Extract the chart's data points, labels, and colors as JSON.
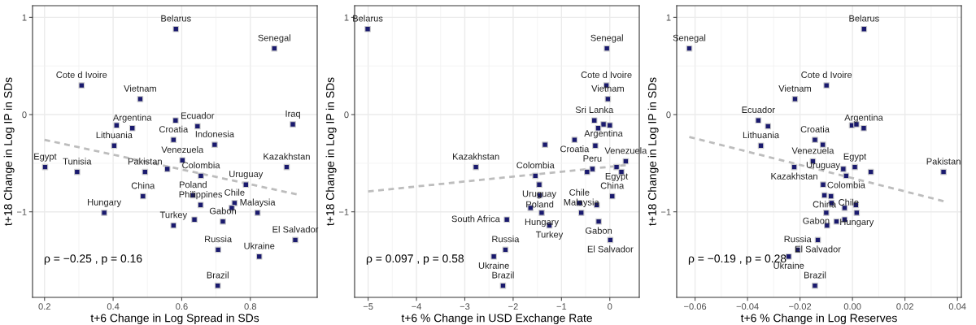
{
  "chart_data": [
    {
      "type": "scatter",
      "xlabel": "t+6 Change in Log Spread in SDs",
      "ylabel": "t+18 Change in Log IP in SDs",
      "marker": "square",
      "grid": true,
      "xlim": [
        0.165,
        0.995
      ],
      "ylim": [
        -1.88,
        1.12
      ],
      "xticks": [
        0.2,
        0.4,
        0.6,
        0.8
      ],
      "yticks": [
        -1,
        0,
        1
      ],
      "series": [
        {
          "color": "#1a1a6e",
          "x": [
            0.583,
            0.87,
            0.308,
            0.479,
            0.41,
            0.456,
            0.582,
            0.646,
            0.924,
            0.576,
            0.403,
            0.696,
            0.602,
            0.2016,
            0.295,
            0.493,
            0.558,
            0.656,
            0.906,
            0.787,
            0.487,
            0.633,
            0.655,
            0.754,
            0.746,
            0.821,
            0.374,
            0.576,
            0.637,
            0.72,
            0.931,
            0.706,
            0.826,
            0.705
          ],
          "values": [
            0.88,
            0.68,
            0.3,
            0.16,
            -0.11,
            -0.14,
            -0.06,
            -0.12,
            -0.1,
            -0.26,
            -0.32,
            -0.31,
            -0.47,
            -0.54,
            -0.59,
            -0.59,
            -0.56,
            -0.63,
            -0.54,
            -0.72,
            -0.84,
            -0.83,
            -0.93,
            -0.91,
            -0.96,
            -1.01,
            -1.01,
            -1.14,
            -1.08,
            -1.1,
            -1.29,
            -1.39,
            -1.46,
            -1.76
          ]
        },
        {
          "type": "line",
          "line_style": "dashed",
          "marker": "none",
          "color": "#bdbdbd",
          "x": [
            0.2,
            0.935
          ],
          "values": [
            -0.26,
            -0.82
          ]
        }
      ],
      "annotations": [
        {
          "text": "Belarus",
          "x": 0.583,
          "y": 0.88
        },
        {
          "text": "Senegal",
          "x": 0.87,
          "y": 0.68
        },
        {
          "text": "Cote d Ivoire",
          "x": 0.308,
          "y": 0.3
        },
        {
          "text": "Vietnam",
          "x": 0.479,
          "y": 0.16
        },
        {
          "text": "Argentina",
          "x": 0.456,
          "y": -0.14
        },
        {
          "text": "Ecuador",
          "x": 0.646,
          "y": -0.12
        },
        {
          "text": "Iraq",
          "x": 0.924,
          "y": -0.1
        },
        {
          "text": "Croatia",
          "x": 0.576,
          "y": -0.26
        },
        {
          "text": "Lithuania",
          "x": 0.403,
          "y": -0.32
        },
        {
          "text": "Indonesia",
          "x": 0.696,
          "y": -0.31
        },
        {
          "text": "Venezuela",
          "x": 0.602,
          "y": -0.47
        },
        {
          "text": "Egypt",
          "x": 0.2016,
          "y": -0.54
        },
        {
          "text": "Tunisia",
          "x": 0.295,
          "y": -0.59
        },
        {
          "text": "Pakistan",
          "x": 0.493,
          "y": -0.59
        },
        {
          "text": "Colombia",
          "x": 0.656,
          "y": -0.63
        },
        {
          "text": "Kazakhstan",
          "x": 0.906,
          "y": -0.54
        },
        {
          "text": "Uruguay",
          "x": 0.787,
          "y": -0.72
        },
        {
          "text": "China",
          "x": 0.487,
          "y": -0.84
        },
        {
          "text": "Poland",
          "x": 0.633,
          "y": -0.83
        },
        {
          "text": "Philippines",
          "x": 0.655,
          "y": -0.93
        },
        {
          "text": "Chile",
          "x": 0.754,
          "y": -0.91
        },
        {
          "text": "Malaysia",
          "x": 0.821,
          "y": -1.01
        },
        {
          "text": "Hungary",
          "x": 0.374,
          "y": -1.01
        },
        {
          "text": "Turkey",
          "x": 0.576,
          "y": -1.14
        },
        {
          "text": "Gabon",
          "x": 0.72,
          "y": -1.1
        },
        {
          "text": "El Salvador",
          "x": 0.931,
          "y": -1.29
        },
        {
          "text": "Russia",
          "x": 0.706,
          "y": -1.39
        },
        {
          "text": "Ukraine",
          "x": 0.826,
          "y": -1.46
        },
        {
          "text": "Brazil",
          "x": 0.705,
          "y": -1.76
        },
        "ρ = −0.25 , p = 0.16"
      ]
    },
    {
      "type": "scatter",
      "xlabel": "t+6 % Change in USD Exchange Rate",
      "ylabel": "t+18 Change in Log IP in SDs",
      "marker": "square",
      "grid": true,
      "xlim": [
        -5.28,
        0.61
      ],
      "ylim": [
        -1.88,
        1.12
      ],
      "xticks": [
        {
          "value": -5,
          "label": "−5"
        },
        {
          "value": -4,
          "label": "−4"
        },
        {
          "value": -3,
          "label": "−3"
        },
        {
          "value": -2,
          "label": "−2"
        },
        {
          "value": -1,
          "label": "−1"
        },
        0
      ],
      "yticks": [
        -1,
        0,
        1
      ],
      "series": [
        {
          "color": "#1a1a6e",
          "x": [
            -5.01,
            -0.06,
            -0.07,
            -0.04,
            -0.32,
            -0.13,
            0.0,
            -0.24,
            -0.73,
            -1.34,
            -0.3,
            0.33,
            0.14,
            0.24,
            -0.36,
            -0.47,
            -2.77,
            -1.54,
            -1.46,
            -1.45,
            0.05,
            -0.63,
            -0.27,
            -0.59,
            -1.41,
            -1.64,
            -2.13,
            -1.25,
            -0.23,
            0.01,
            -2.16,
            -2.4,
            -2.21
          ],
          "values": [
            0.88,
            0.68,
            0.3,
            0.16,
            -0.06,
            -0.1,
            -0.11,
            -0.14,
            -0.26,
            -0.31,
            -0.32,
            -0.48,
            -0.54,
            -0.59,
            -0.56,
            -0.59,
            -0.54,
            -0.63,
            -0.72,
            -0.83,
            -0.84,
            -0.91,
            -0.93,
            -1.01,
            -1.01,
            -0.96,
            -1.08,
            -1.14,
            -1.1,
            -1.29,
            -1.39,
            -1.46,
            -1.76
          ]
        },
        {
          "type": "line",
          "line_style": "dashed",
          "marker": "none",
          "color": "#bdbdbd",
          "x": [
            -5.0,
            0.33
          ],
          "values": [
            -0.79,
            -0.52
          ]
        }
      ],
      "annotations": [
        {
          "text": "Belarus",
          "x": -5.01,
          "y": 0.88
        },
        {
          "text": "Senegal",
          "x": -0.06,
          "y": 0.68
        },
        {
          "text": "Cote d Ivoire",
          "x": -0.07,
          "y": 0.3
        },
        {
          "text": "Vietnam",
          "x": -0.04,
          "y": 0.16
        },
        {
          "text": "Sri Lanka",
          "x": -0.32,
          "y": -0.06
        },
        {
          "text": "Argentina",
          "x": -0.13,
          "y": -0.1
        },
        {
          "text": "Croatia",
          "x": -0.73,
          "y": -0.26
        },
        {
          "text": "Venezuela",
          "x": 0.33,
          "y": -0.48
        },
        {
          "text": "Egypt",
          "x": 0.14,
          "y": -0.54
        },
        {
          "text": "Peru",
          "x": -0.36,
          "y": -0.56
        },
        {
          "text": "Kazakhstan",
          "x": -2.77,
          "y": -0.54
        },
        {
          "text": "Colombia",
          "x": -1.54,
          "y": -0.63
        },
        {
          "text": "Uruguay",
          "x": -1.46,
          "y": -0.72
        },
        {
          "text": "Poland",
          "x": -1.45,
          "y": -0.83
        },
        {
          "text": "China",
          "x": 0.05,
          "y": -0.84
        },
        {
          "text": "Chile",
          "x": -0.63,
          "y": -0.91
        },
        {
          "text": "Malaysia",
          "x": -0.59,
          "y": -1.01
        },
        {
          "text": "Hungary",
          "x": -1.41,
          "y": -1.01
        },
        {
          "text": "South Africa",
          "x": -2.13,
          "y": -1.08
        },
        {
          "text": "Turkey",
          "x": -1.25,
          "y": -1.14
        },
        {
          "text": "Gabon",
          "x": -0.23,
          "y": -1.1
        },
        {
          "text": "El Salvador",
          "x": 0.01,
          "y": -1.29
        },
        {
          "text": "Russia",
          "x": -2.16,
          "y": -1.39
        },
        {
          "text": "Ukraine",
          "x": -2.4,
          "y": -1.46
        },
        {
          "text": "Brazil",
          "x": -2.21,
          "y": -1.76
        },
        "ρ = 0.097 , p = 0.58"
      ]
    },
    {
      "type": "scatter",
      "xlabel": "t+6 % Change in Log Reserves",
      "ylabel": "t+18 Change in Log IP in SDs",
      "marker": "square",
      "grid": true,
      "xlim": [
        -0.067,
        0.0415
      ],
      "ylim": [
        -1.88,
        1.12
      ],
      "xticks": [
        {
          "value": -0.06,
          "label": "−0.06"
        },
        {
          "value": -0.04,
          "label": "−0.04"
        },
        {
          "value": -0.02,
          "label": "−0.02"
        },
        {
          "value": 0,
          "label": "0.00"
        },
        0.02,
        0.04
      ],
      "yticks": [
        -1,
        0,
        1
      ],
      "series": [
        {
          "color": "#1a1a6e",
          "x": [
            -0.0622,
            0.0044,
            -0.0099,
            -0.0219,
            -0.0359,
            -0.0322,
            -0.0002,
            0.0015,
            0.0043,
            -0.0349,
            -0.0143,
            -0.0113,
            -0.0151,
            -0.0222,
            0.0009,
            -0.0035,
            -0.0024,
            -0.0112,
            0.007,
            0.0347,
            -0.0107,
            -0.0082,
            -0.008,
            0.0016,
            -0.01,
            0.0013,
            -0.003,
            -0.0061,
            -0.003,
            -0.0097,
            -0.0132,
            -0.0209,
            -0.0243,
            -0.0143
          ],
          "values": [
            0.68,
            0.88,
            0.3,
            0.16,
            -0.06,
            -0.12,
            -0.11,
            -0.1,
            -0.14,
            -0.32,
            -0.26,
            -0.31,
            -0.48,
            -0.54,
            -0.54,
            -0.56,
            -0.63,
            -0.72,
            -0.59,
            -0.59,
            -0.83,
            -0.84,
            -0.91,
            -1.01,
            -1.01,
            -0.93,
            -0.96,
            -1.1,
            -1.08,
            -1.14,
            -1.29,
            -1.39,
            -1.46,
            -1.76
          ]
        },
        {
          "type": "line",
          "line_style": "dashed",
          "marker": "none",
          "color": "#bdbdbd",
          "x": [
            -0.0622,
            0.0347
          ],
          "values": [
            -0.23,
            -0.89
          ]
        }
      ],
      "annotations": [
        {
          "text": "Senegal",
          "x": -0.0622,
          "y": 0.68
        },
        {
          "text": "Belarus",
          "x": 0.0044,
          "y": 0.88
        },
        {
          "text": "Cote d Ivoire",
          "x": -0.0099,
          "y": 0.3
        },
        {
          "text": "Vietnam",
          "x": -0.0219,
          "y": 0.16
        },
        {
          "text": "Ecuador",
          "x": -0.0359,
          "y": -0.06
        },
        {
          "text": "Argentina",
          "x": 0.0043,
          "y": -0.14
        },
        {
          "text": "Lithuania",
          "x": -0.0349,
          "y": -0.32
        },
        {
          "text": "Croatia",
          "x": -0.0143,
          "y": -0.26
        },
        {
          "text": "Venezuela",
          "x": -0.0151,
          "y": -0.48
        },
        {
          "text": "Kazakhstan",
          "x": -0.0222,
          "y": -0.54
        },
        {
          "text": "Egypt",
          "x": 0.0009,
          "y": -0.54
        },
        {
          "text": "Colombia",
          "x": -0.0024,
          "y": -0.63
        },
        {
          "text": "Uruguay",
          "x": -0.0112,
          "y": -0.72
        },
        {
          "text": "Pakistan",
          "x": 0.0347,
          "y": -0.59
        },
        {
          "text": "China",
          "x": -0.0107,
          "y": -0.83
        },
        {
          "text": "Chile",
          "x": -0.008,
          "y": -0.91
        },
        {
          "text": "Hungary",
          "x": 0.0016,
          "y": -1.01
        },
        {
          "text": "Gabon",
          "x": -0.0061,
          "y": -1.1
        },
        {
          "text": "El Salvador",
          "x": -0.0132,
          "y": -1.29
        },
        {
          "text": "Russia",
          "x": -0.0209,
          "y": -1.39
        },
        {
          "text": "Ukraine",
          "x": -0.0243,
          "y": -1.46
        },
        {
          "text": "Brazil",
          "x": -0.0143,
          "y": -1.76
        },
        "ρ = −0.19 , p = 0.28"
      ]
    }
  ]
}
